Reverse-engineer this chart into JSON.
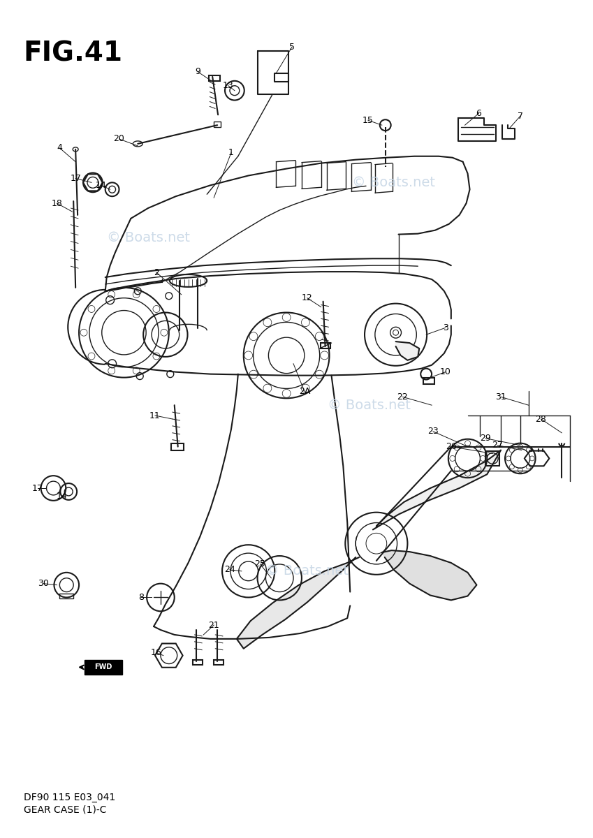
{
  "title": "FIG.41",
  "subtitle1": "DF90 115 E03_041",
  "subtitle2": "GEAR CASE (1)-C",
  "bg_color": "#ffffff",
  "line_color": "#1a1a1a",
  "wm_color": "#c5d5e5",
  "fig_w": 8.49,
  "fig_h": 12.0
}
